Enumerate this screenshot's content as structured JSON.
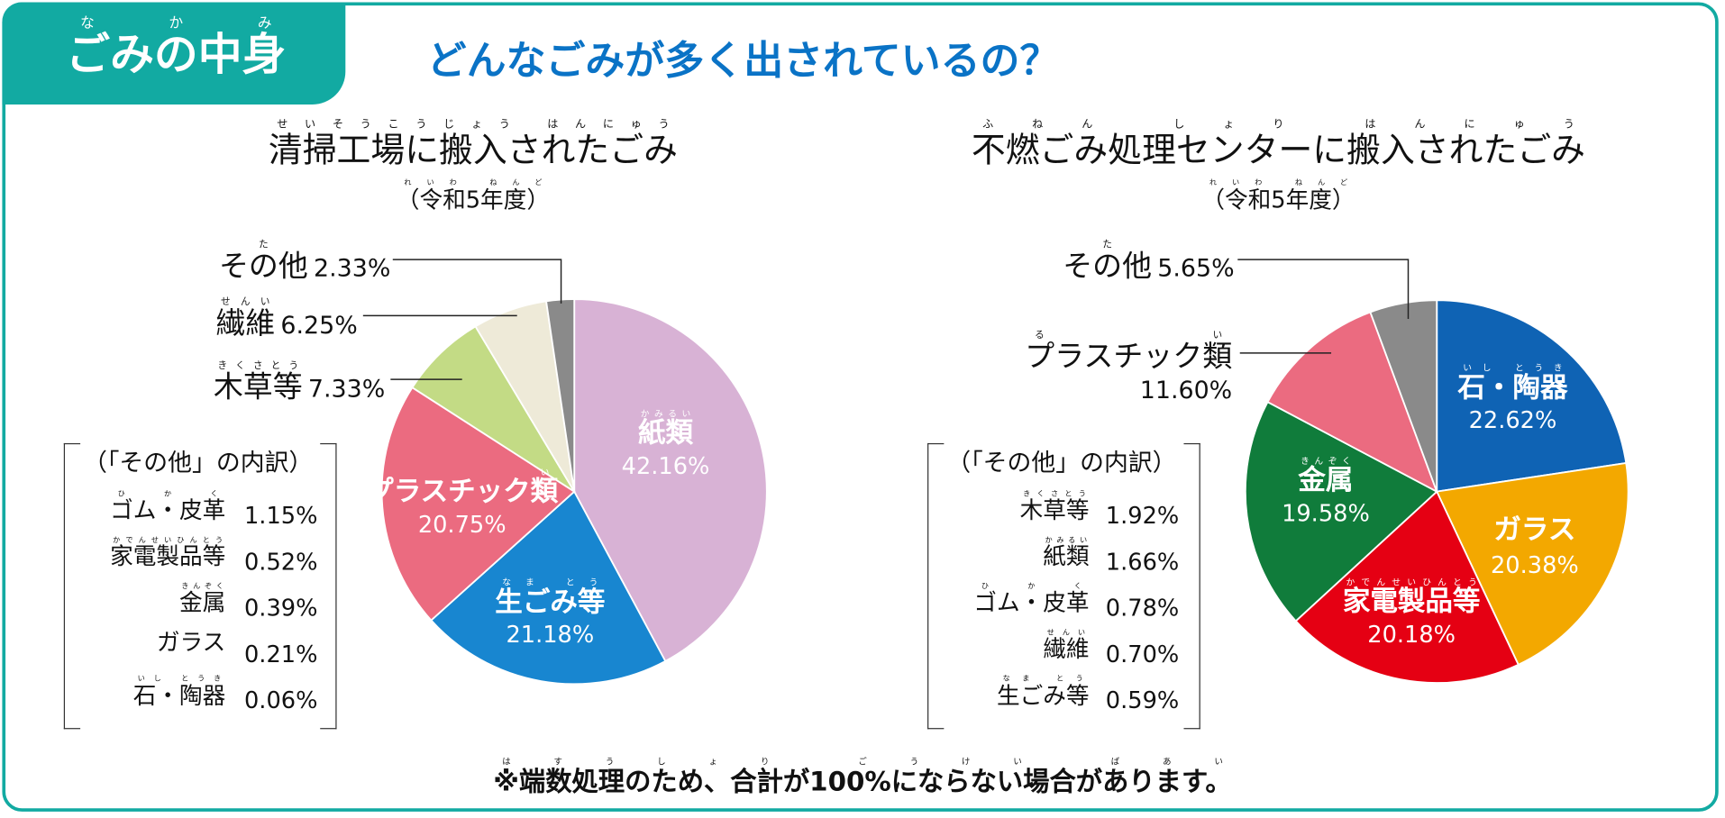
{
  "header": {
    "badge": {
      "text": "ごみの中身",
      "ruby": "なかみ"
    },
    "title": "どんなごみが多く出されているの？",
    "title_ruby": [
      {
        "t": "どんなごみが",
        "r": ""
      },
      {
        "t": "多",
        "r": "おお"
      },
      {
        "t": "く",
        "r": ""
      },
      {
        "t": "出",
        "r": "だ"
      },
      {
        "t": "されているの？",
        "r": ""
      }
    ]
  },
  "colors": {
    "frame": "#12aaa2",
    "title": "#0a73c6"
  },
  "chart_data": [
    {
      "type": "pie",
      "title": "清掃工場に搬入されたごみ",
      "title_ruby": "せいそうこうじょう はんにゅう",
      "subtitle": "（令和5年度）",
      "subtitle_ruby": "れいわ ねんど",
      "start": "top",
      "direction": "clockwise",
      "slices": [
        {
          "label": "紙類",
          "ruby": "かみるい",
          "value": 42.16,
          "display": "42.16%",
          "color": "#d8b2d5"
        },
        {
          "label": "生ごみ等",
          "ruby": "なま とう",
          "value": 21.18,
          "display": "21.18%",
          "color": "#1886d0"
        },
        {
          "label": "プラスチック類",
          "ruby": "るい",
          "value": 20.75,
          "display": "20.75%",
          "color": "#eb6b80"
        },
        {
          "label": "木草等",
          "ruby": "きくさとう",
          "value": 7.33,
          "display": "7.33%",
          "color": "#c3db85"
        },
        {
          "label": "繊維",
          "ruby": "せんい",
          "value": 6.25,
          "display": "6.25%",
          "color": "#eeead8"
        },
        {
          "label": "その他",
          "ruby": "た",
          "value": 2.33,
          "display": "2.33%",
          "color": "#8a8a8a"
        }
      ],
      "breakdown": {
        "title": "（「その他」の内訳）",
        "items": [
          {
            "label": "ゴム・皮革",
            "ruby": "ひかく",
            "value": "1.15%"
          },
          {
            "label": "家電製品等",
            "ruby": "かでんせいひんとう",
            "value": "0.52%"
          },
          {
            "label": "金属",
            "ruby": "きんぞく",
            "value": "0.39%"
          },
          {
            "label": "ガラス",
            "ruby": "",
            "value": "0.21%"
          },
          {
            "label": "石・陶器",
            "ruby": "いし とうき",
            "value": "0.06%"
          }
        ]
      }
    },
    {
      "type": "pie",
      "title": "不燃ごみ処理センターに搬入されたごみ",
      "title_ruby": "ふねん しょり はんにゅう",
      "subtitle": "（令和5年度）",
      "subtitle_ruby": "れいわ ねんど",
      "start": "top",
      "direction": "clockwise",
      "slices": [
        {
          "label": "石・陶器",
          "ruby": "いし とうき",
          "value": 22.62,
          "display": "22.62%",
          "color": "#0f63b4"
        },
        {
          "label": "ガラス",
          "ruby": "",
          "value": 20.38,
          "display": "20.38%",
          "color": "#f3a800"
        },
        {
          "label": "家電製品等",
          "ruby": "かでんせいひんとう",
          "value": 20.18,
          "display": "20.18%",
          "color": "#e50013"
        },
        {
          "label": "金属",
          "ruby": "きんぞく",
          "value": 19.58,
          "display": "19.58%",
          "color": "#107c3b"
        },
        {
          "label": "プラスチック類",
          "ruby": "るい",
          "value": 11.6,
          "display": "11.60%",
          "color": "#eb6b80"
        },
        {
          "label": "その他",
          "ruby": "た",
          "value": 5.65,
          "display": "5.65%",
          "color": "#8a8a8a"
        }
      ],
      "breakdown": {
        "title": "（「その他」の内訳）",
        "items": [
          {
            "label": "木草等",
            "ruby": "きくさとう",
            "value": "1.92%"
          },
          {
            "label": "紙類",
            "ruby": "かみるい",
            "value": "1.66%"
          },
          {
            "label": "ゴム・皮革",
            "ruby": "ひかく",
            "value": "0.78%"
          },
          {
            "label": "繊維",
            "ruby": "せんい",
            "value": "0.70%"
          },
          {
            "label": "生ごみ等",
            "ruby": "なま とう",
            "value": "0.59%"
          }
        ]
      }
    }
  ],
  "footnote": "※端数処理のため、合計が100%にならない場合があります。",
  "footnote_ruby": "はすうしょり ごうけい ばあい"
}
